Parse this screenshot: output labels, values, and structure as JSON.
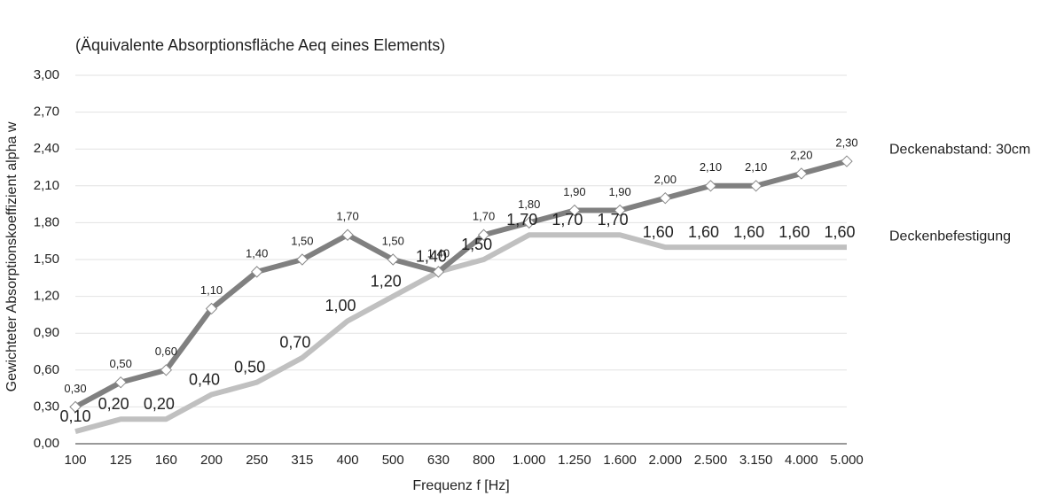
{
  "chart_data": {
    "type": "line",
    "title": "(Äquivalente Absorptionsfläche Aeq eines Elements)",
    "x_label": "Frequenz f [Hz]",
    "y_label": "Gewichteter Absorptionskoeffizient alpha w",
    "categories": [
      "100",
      "125",
      "160",
      "200",
      "250",
      "315",
      "400",
      "500",
      "630",
      "800",
      "1.000",
      "1.250",
      "1.600",
      "2.000",
      "2.500",
      "3.150",
      "4.000",
      "5.000"
    ],
    "ylim": [
      0,
      3
    ],
    "yticks": [
      {
        "value": 0,
        "label": "0,00"
      },
      {
        "value": 0.3,
        "label": "0,30"
      },
      {
        "value": 0.6,
        "label": "0,60"
      },
      {
        "value": 0.9,
        "label": "0,90"
      },
      {
        "value": 1.2,
        "label": "1,20"
      },
      {
        "value": 1.5,
        "label": "1,50"
      },
      {
        "value": 1.8,
        "label": "1,80"
      },
      {
        "value": 2.1,
        "label": "2,10"
      },
      {
        "value": 2.4,
        "label": "2,40"
      },
      {
        "value": 2.7,
        "label": "2,70"
      },
      {
        "value": 3,
        "label": "3,00"
      }
    ],
    "grid": true,
    "legend": "right",
    "series": [
      {
        "name": "Deckenabstand: 30cm",
        "color": "#808080",
        "marker": "diamond",
        "values": [
          0.3,
          0.5,
          0.6,
          1.1,
          1.4,
          1.5,
          1.7,
          1.5,
          1.4,
          1.7,
          1.8,
          1.9,
          1.9,
          2.0,
          2.1,
          2.1,
          2.2,
          2.3
        ],
        "value_labels": [
          "0,30",
          "0,50",
          "0,60",
          "1,10",
          "1,40",
          "1,50",
          "1,70",
          "1,50",
          "1,40",
          "1,70",
          "1,80",
          "1,90",
          "1,90",
          "2,00",
          "2,10",
          "2,10",
          "2,20",
          "2,30"
        ]
      },
      {
        "name": "Deckenbefestigung",
        "color": "#c0c0c0",
        "marker": "none",
        "values": [
          0.1,
          0.2,
          0.2,
          0.4,
          0.5,
          0.7,
          1.0,
          1.2,
          1.4,
          1.5,
          1.7,
          1.7,
          1.7,
          1.6,
          1.6,
          1.6,
          1.6,
          1.6
        ],
        "value_labels": [
          "0,10",
          "0,20",
          "0,20",
          "0,40",
          "0,50",
          "0,70",
          "1,00",
          "1,20",
          "1,40",
          "1,50",
          "1,70",
          "1,70",
          "1,70",
          "1,60",
          "1,60",
          "1,60",
          "1,60",
          "1,60"
        ]
      }
    ]
  }
}
